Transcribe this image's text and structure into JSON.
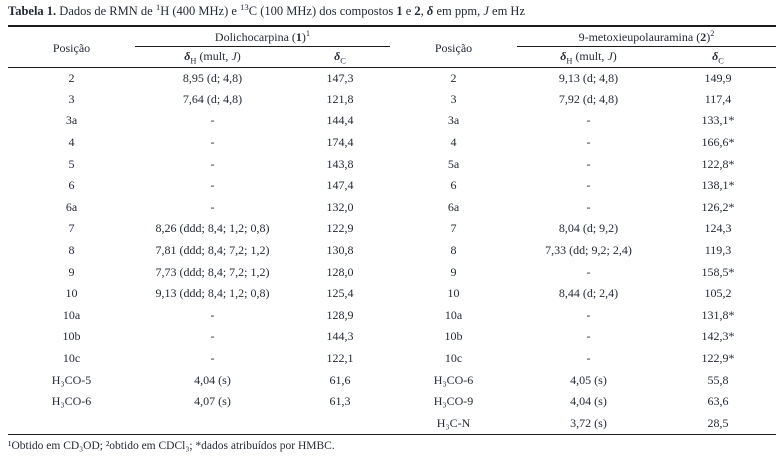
{
  "title": {
    "segments": [
      {
        "t": "Tabela 1.",
        "b": true
      },
      {
        "t": " Dados de RMN de "
      },
      {
        "t": "1",
        "sup": true
      },
      {
        "t": "H (400 MHz) e "
      },
      {
        "t": "13",
        "sup": true
      },
      {
        "t": "C (100 MHz) dos compostos "
      },
      {
        "t": "1",
        "b": true
      },
      {
        "t": " e "
      },
      {
        "t": "2",
        "b": true
      },
      {
        "t": ", "
      },
      {
        "t": "δ",
        "b": true,
        "i": true
      },
      {
        "t": " em ppm, "
      },
      {
        "t": "J",
        "i": true
      },
      {
        "t": " em Hz"
      }
    ]
  },
  "table": {
    "headers": {
      "position_label_left": "Posição",
      "position_label_right": "Posição",
      "compound1": {
        "segments": [
          {
            "t": "Dolichocarpina ("
          },
          {
            "t": "1",
            "b": true
          },
          {
            "t": ")"
          },
          {
            "t": "1",
            "sup": true
          }
        ]
      },
      "compound2": {
        "segments": [
          {
            "t": "9-metoxieupolauramina ("
          },
          {
            "t": "2",
            "b": true
          },
          {
            "t": ")"
          },
          {
            "t": "2",
            "sup": true
          }
        ]
      },
      "dh_left": {
        "segments": [
          {
            "t": "δ",
            "b": true,
            "i": true
          },
          {
            "t": "H",
            "sub": true
          },
          {
            "t": " (mult, "
          },
          {
            "t": "J",
            "i": true
          },
          {
            "t": ")"
          }
        ]
      },
      "dc_left": {
        "segments": [
          {
            "t": "δ",
            "b": true,
            "i": true
          },
          {
            "t": "C",
            "sub": true
          }
        ]
      },
      "dh_right": {
        "segments": [
          {
            "t": "δ",
            "b": true,
            "i": true
          },
          {
            "t": "H",
            "sub": true
          },
          {
            "t": " (mult, "
          },
          {
            "t": "J",
            "i": true
          },
          {
            "t": ")"
          }
        ]
      },
      "dc_right": {
        "segments": [
          {
            "t": "δ",
            "b": true,
            "i": true
          },
          {
            "t": "C",
            "sub": true
          }
        ]
      }
    },
    "rows": [
      [
        "2",
        "8,95 (d; 4,8)",
        "147,3",
        "2",
        "9,13 (d; 4,8)",
        "149,9"
      ],
      [
        "3",
        "7,64 (d; 4,8)",
        "121,8",
        "3",
        "7,92 (d; 4,8)",
        "117,4"
      ],
      [
        "3a",
        "-",
        "144,4",
        "3a",
        "-",
        "133,1*"
      ],
      [
        "4",
        "-",
        "174,4",
        "4",
        "-",
        "166,6*"
      ],
      [
        "5",
        "-",
        "143,8",
        "5a",
        "-",
        "122,8*"
      ],
      [
        "6",
        "-",
        "147,4",
        "6",
        "-",
        "138,1*"
      ],
      [
        "6a",
        "-",
        "132,0",
        "6a",
        "-",
        "126,2*"
      ],
      [
        "7",
        "8,26 (ddd; 8,4; 1,2; 0,8)",
        "122,9",
        "7",
        "8,04 (d; 9,2)",
        "124,3"
      ],
      [
        "8",
        "7,81 (ddd; 8,4; 7,2; 1,2)",
        "130,8",
        "8",
        "7,33 (dd; 9,2; 2,4)",
        "119,3"
      ],
      [
        "9",
        "7,73 (ddd; 8,4; 7,2; 1,2)",
        "128,0",
        "9",
        "-",
        "158,5*"
      ],
      [
        "10",
        "9,13 (ddd; 8,4; 1,2; 0,8)",
        "125,4",
        "10",
        "8,44 (d; 2,4)",
        "105,2"
      ],
      [
        "10a",
        "-",
        "128,9",
        "10a",
        "-",
        "131,8*"
      ],
      [
        "10b",
        "-",
        "144,3",
        "10b",
        "-",
        "142,3*"
      ],
      [
        "10c",
        "-",
        "122,1",
        "10c",
        "-",
        "122,9*"
      ],
      [
        "H₃CO-5",
        "4,04 (s)",
        "61,6",
        "H₃CO-6",
        "4,05 (s)",
        "55,8"
      ],
      [
        "H₃CO-6",
        "4,07 (s)",
        "61,3",
        "H₃CO-9",
        "4,04 (s)",
        "63,6"
      ],
      [
        "",
        "",
        "",
        "H₃C-N",
        "3,72 (s)",
        "28,5"
      ]
    ]
  },
  "footnote": "¹Obtido em CD₃OD; ²obtido em CDCl₃; *dados atribuídos por HMBC.",
  "colors": {
    "background": "#ffffff",
    "text": "#242a36",
    "rule": "#1c1c1c"
  }
}
